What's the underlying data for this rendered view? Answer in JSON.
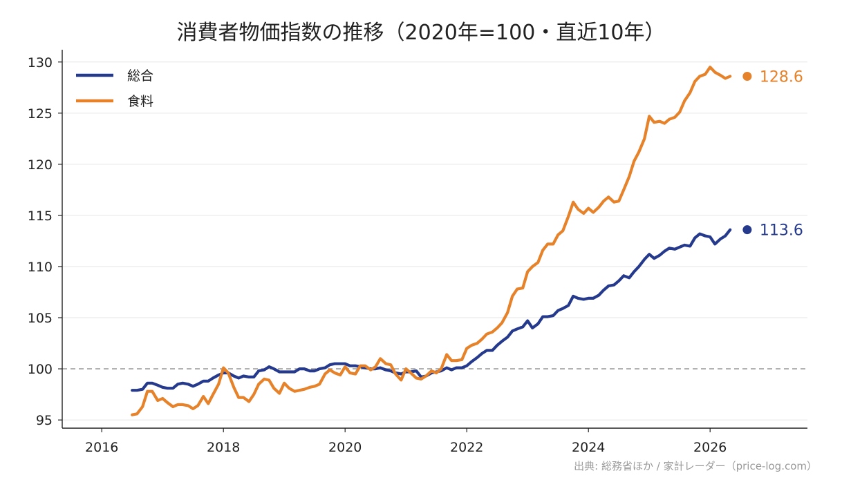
{
  "chart_data": {
    "type": "line",
    "title": "消費者物価指数の推移（2020年=100・直近10年）",
    "xlim": [
      2015.35,
      2027.6
    ],
    "ylim": [
      94.2,
      131.2
    ],
    "x_ticks": [
      2016,
      2018,
      2020,
      2022,
      2024,
      2026
    ],
    "x_tick_labels": [
      "2016",
      "2018",
      "2020",
      "2022",
      "2024",
      "2026"
    ],
    "y_ticks": [
      95,
      100,
      105,
      110,
      115,
      120,
      125,
      130
    ],
    "y_tick_labels": [
      "95",
      "100",
      "105",
      "110",
      "115",
      "120",
      "125",
      "130"
    ],
    "grid": "horizontal",
    "reference_line": 100,
    "legend_position": "top-left",
    "series": [
      {
        "name": "総合",
        "color": "#253a8c",
        "end_label": "113.6",
        "points": [
          [
            2016.5,
            97.9
          ],
          [
            2016.58,
            97.9
          ],
          [
            2016.67,
            98.0
          ],
          [
            2016.75,
            98.6
          ],
          [
            2016.83,
            98.6
          ],
          [
            2016.92,
            98.4
          ],
          [
            2017.0,
            98.2
          ],
          [
            2017.08,
            98.1
          ],
          [
            2017.17,
            98.1
          ],
          [
            2017.25,
            98.5
          ],
          [
            2017.33,
            98.6
          ],
          [
            2017.42,
            98.5
          ],
          [
            2017.5,
            98.3
          ],
          [
            2017.58,
            98.5
          ],
          [
            2017.67,
            98.8
          ],
          [
            2017.75,
            98.8
          ],
          [
            2017.83,
            99.1
          ],
          [
            2017.92,
            99.4
          ],
          [
            2018.0,
            99.6
          ],
          [
            2018.08,
            99.6
          ],
          [
            2018.17,
            99.3
          ],
          [
            2018.25,
            99.1
          ],
          [
            2018.33,
            99.3
          ],
          [
            2018.42,
            99.2
          ],
          [
            2018.5,
            99.2
          ],
          [
            2018.58,
            99.8
          ],
          [
            2018.67,
            99.9
          ],
          [
            2018.75,
            100.2
          ],
          [
            2018.83,
            100.0
          ],
          [
            2018.92,
            99.7
          ],
          [
            2019.0,
            99.7
          ],
          [
            2019.08,
            99.7
          ],
          [
            2019.17,
            99.7
          ],
          [
            2019.25,
            100.0
          ],
          [
            2019.33,
            100.0
          ],
          [
            2019.42,
            99.8
          ],
          [
            2019.5,
            99.8
          ],
          [
            2019.58,
            100.0
          ],
          [
            2019.67,
            100.1
          ],
          [
            2019.75,
            100.4
          ],
          [
            2019.83,
            100.5
          ],
          [
            2019.92,
            100.5
          ],
          [
            2020.0,
            100.5
          ],
          [
            2020.08,
            100.3
          ],
          [
            2020.17,
            100.3
          ],
          [
            2020.25,
            100.2
          ],
          [
            2020.33,
            100.1
          ],
          [
            2020.42,
            100.0
          ],
          [
            2020.5,
            100.0
          ],
          [
            2020.58,
            100.1
          ],
          [
            2020.67,
            99.9
          ],
          [
            2020.75,
            99.8
          ],
          [
            2020.83,
            99.6
          ],
          [
            2020.92,
            99.5
          ],
          [
            2021.0,
            99.7
          ],
          [
            2021.08,
            99.7
          ],
          [
            2021.17,
            99.8
          ],
          [
            2021.25,
            99.2
          ],
          [
            2021.33,
            99.3
          ],
          [
            2021.42,
            99.6
          ],
          [
            2021.5,
            99.7
          ],
          [
            2021.58,
            99.8
          ],
          [
            2021.67,
            100.1
          ],
          [
            2021.75,
            99.9
          ],
          [
            2021.83,
            100.1
          ],
          [
            2021.92,
            100.1
          ],
          [
            2022.0,
            100.3
          ],
          [
            2022.08,
            100.7
          ],
          [
            2022.17,
            101.1
          ],
          [
            2022.25,
            101.5
          ],
          [
            2022.33,
            101.8
          ],
          [
            2022.42,
            101.8
          ],
          [
            2022.5,
            102.3
          ],
          [
            2022.58,
            102.7
          ],
          [
            2022.67,
            103.1
          ],
          [
            2022.75,
            103.7
          ],
          [
            2022.83,
            103.9
          ],
          [
            2022.92,
            104.1
          ],
          [
            2023.0,
            104.7
          ],
          [
            2023.08,
            104.0
          ],
          [
            2023.17,
            104.4
          ],
          [
            2023.25,
            105.1
          ],
          [
            2023.33,
            105.1
          ],
          [
            2023.42,
            105.2
          ],
          [
            2023.5,
            105.7
          ],
          [
            2023.58,
            105.9
          ],
          [
            2023.67,
            106.2
          ],
          [
            2023.75,
            107.1
          ],
          [
            2023.83,
            106.9
          ],
          [
            2023.92,
            106.8
          ],
          [
            2024.0,
            106.9
          ],
          [
            2024.08,
            106.9
          ],
          [
            2024.17,
            107.2
          ],
          [
            2024.25,
            107.7
          ],
          [
            2024.33,
            108.1
          ],
          [
            2024.42,
            108.2
          ],
          [
            2024.5,
            108.6
          ],
          [
            2024.58,
            109.1
          ],
          [
            2024.67,
            108.9
          ],
          [
            2024.75,
            109.5
          ],
          [
            2024.83,
            110.0
          ],
          [
            2024.92,
            110.7
          ],
          [
            2025.0,
            111.2
          ],
          [
            2025.08,
            110.8
          ],
          [
            2025.17,
            111.1
          ],
          [
            2025.25,
            111.5
          ],
          [
            2025.33,
            111.8
          ],
          [
            2025.42,
            111.7
          ],
          [
            2025.5,
            111.9
          ],
          [
            2025.58,
            112.1
          ],
          [
            2025.67,
            112.0
          ],
          [
            2025.75,
            112.8
          ],
          [
            2025.83,
            113.2
          ],
          [
            2025.92,
            113.0
          ],
          [
            2026.0,
            112.9
          ],
          [
            2026.08,
            112.2
          ],
          [
            2026.17,
            112.7
          ],
          [
            2026.25,
            113.0
          ],
          [
            2026.33,
            113.6
          ]
        ]
      },
      {
        "name": "食料",
        "color": "#e6822a",
        "end_label": "128.6",
        "points": [
          [
            2016.5,
            95.5
          ],
          [
            2016.58,
            95.6
          ],
          [
            2016.67,
            96.3
          ],
          [
            2016.75,
            97.8
          ],
          [
            2016.83,
            97.8
          ],
          [
            2016.92,
            96.9
          ],
          [
            2017.0,
            97.1
          ],
          [
            2017.08,
            96.7
          ],
          [
            2017.17,
            96.3
          ],
          [
            2017.25,
            96.5
          ],
          [
            2017.33,
            96.5
          ],
          [
            2017.42,
            96.4
          ],
          [
            2017.5,
            96.1
          ],
          [
            2017.58,
            96.4
          ],
          [
            2017.67,
            97.3
          ],
          [
            2017.75,
            96.6
          ],
          [
            2017.83,
            97.5
          ],
          [
            2017.92,
            98.5
          ],
          [
            2018.0,
            100.1
          ],
          [
            2018.08,
            99.6
          ],
          [
            2018.17,
            98.2
          ],
          [
            2018.25,
            97.2
          ],
          [
            2018.33,
            97.2
          ],
          [
            2018.42,
            96.8
          ],
          [
            2018.5,
            97.5
          ],
          [
            2018.58,
            98.5
          ],
          [
            2018.67,
            99.0
          ],
          [
            2018.75,
            98.9
          ],
          [
            2018.83,
            98.1
          ],
          [
            2018.92,
            97.6
          ],
          [
            2019.0,
            98.6
          ],
          [
            2019.08,
            98.1
          ],
          [
            2019.17,
            97.8
          ],
          [
            2019.25,
            97.9
          ],
          [
            2019.33,
            98.0
          ],
          [
            2019.42,
            98.2
          ],
          [
            2019.5,
            98.3
          ],
          [
            2019.58,
            98.5
          ],
          [
            2019.67,
            99.5
          ],
          [
            2019.75,
            99.9
          ],
          [
            2019.83,
            99.6
          ],
          [
            2019.92,
            99.4
          ],
          [
            2020.0,
            100.2
          ],
          [
            2020.08,
            99.6
          ],
          [
            2020.17,
            99.5
          ],
          [
            2020.25,
            100.3
          ],
          [
            2020.33,
            100.3
          ],
          [
            2020.42,
            99.9
          ],
          [
            2020.5,
            100.2
          ],
          [
            2020.58,
            101.0
          ],
          [
            2020.67,
            100.5
          ],
          [
            2020.75,
            100.4
          ],
          [
            2020.83,
            99.5
          ],
          [
            2020.92,
            98.9
          ],
          [
            2021.0,
            100.0
          ],
          [
            2021.08,
            99.6
          ],
          [
            2021.17,
            99.1
          ],
          [
            2021.25,
            99.0
          ],
          [
            2021.33,
            99.3
          ],
          [
            2021.42,
            99.8
          ],
          [
            2021.5,
            99.6
          ],
          [
            2021.58,
            100.0
          ],
          [
            2021.67,
            101.4
          ],
          [
            2021.75,
            100.8
          ],
          [
            2021.83,
            100.8
          ],
          [
            2021.92,
            100.9
          ],
          [
            2022.0,
            102.0
          ],
          [
            2022.08,
            102.3
          ],
          [
            2022.17,
            102.5
          ],
          [
            2022.25,
            102.9
          ],
          [
            2022.33,
            103.4
          ],
          [
            2022.42,
            103.6
          ],
          [
            2022.5,
            104.0
          ],
          [
            2022.58,
            104.5
          ],
          [
            2022.67,
            105.5
          ],
          [
            2022.75,
            107.1
          ],
          [
            2022.83,
            107.8
          ],
          [
            2022.92,
            107.9
          ],
          [
            2023.0,
            109.5
          ],
          [
            2023.08,
            110.0
          ],
          [
            2023.17,
            110.4
          ],
          [
            2023.25,
            111.6
          ],
          [
            2023.33,
            112.2
          ],
          [
            2023.42,
            112.2
          ],
          [
            2023.5,
            113.1
          ],
          [
            2023.58,
            113.5
          ],
          [
            2023.67,
            114.9
          ],
          [
            2023.75,
            116.3
          ],
          [
            2023.83,
            115.6
          ],
          [
            2023.92,
            115.2
          ],
          [
            2024.0,
            115.7
          ],
          [
            2024.08,
            115.3
          ],
          [
            2024.17,
            115.8
          ],
          [
            2024.25,
            116.4
          ],
          [
            2024.33,
            116.8
          ],
          [
            2024.42,
            116.3
          ],
          [
            2024.5,
            116.4
          ],
          [
            2024.58,
            117.5
          ],
          [
            2024.67,
            118.8
          ],
          [
            2024.75,
            120.3
          ],
          [
            2024.83,
            121.2
          ],
          [
            2024.92,
            122.5
          ],
          [
            2025.0,
            124.7
          ],
          [
            2025.08,
            124.1
          ],
          [
            2025.17,
            124.2
          ],
          [
            2025.25,
            124.0
          ],
          [
            2025.33,
            124.4
          ],
          [
            2025.42,
            124.6
          ],
          [
            2025.5,
            125.1
          ],
          [
            2025.58,
            126.2
          ],
          [
            2025.67,
            127.0
          ],
          [
            2025.75,
            128.1
          ],
          [
            2025.83,
            128.6
          ],
          [
            2025.92,
            128.8
          ],
          [
            2026.0,
            129.5
          ],
          [
            2026.08,
            129.0
          ],
          [
            2026.17,
            128.7
          ],
          [
            2026.25,
            128.4
          ],
          [
            2026.33,
            128.6
          ]
        ]
      }
    ]
  },
  "source_note": "出典: 総務省ほか / 家計レーダー（price-log.com）"
}
